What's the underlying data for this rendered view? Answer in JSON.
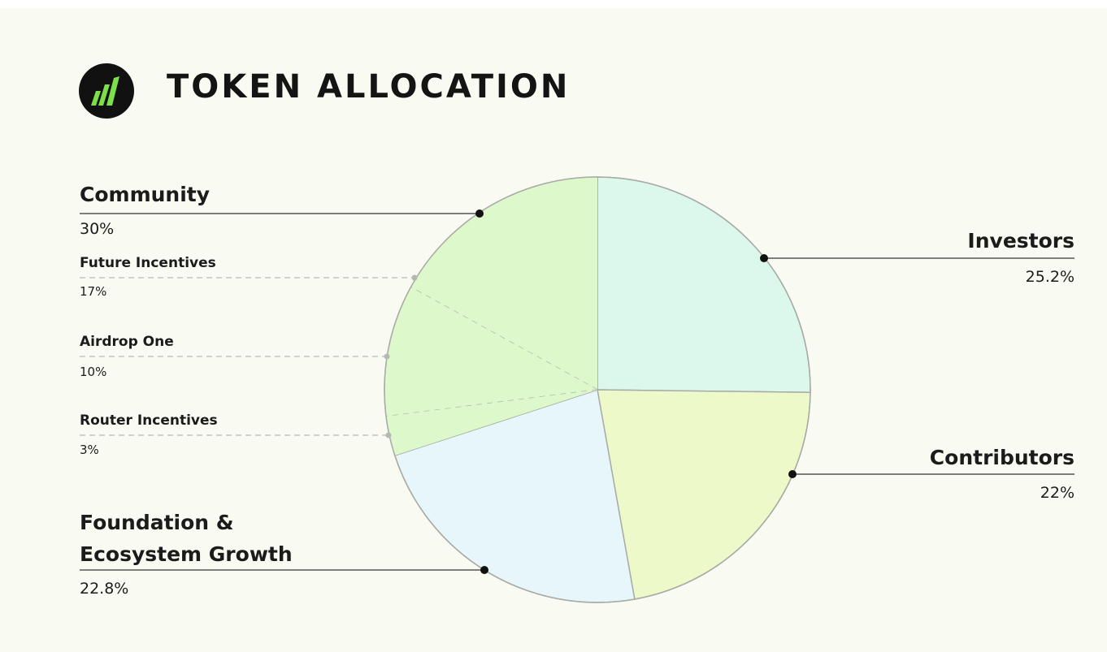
{
  "chart_data": {
    "type": "pie",
    "title": "TOKEN ALLOCATION",
    "categories": [
      "Investors",
      "Contributors",
      "Foundation & Ecosystem Growth",
      "Community"
    ],
    "values": [
      25.2,
      22,
      22.8,
      30
    ],
    "value_labels": [
      "25.2%",
      "22%",
      "22.8%",
      "30%"
    ],
    "colors": [
      "#dcf7ec",
      "#eef9c9",
      "#e7f6fb",
      "#ddf8cb"
    ],
    "subcategories": [
      "Future Incentives",
      "Airdrop One",
      "Router Incentives"
    ],
    "subvalues": [
      17,
      10,
      3
    ],
    "subvalue_labels": [
      "17%",
      "10%",
      "3%"
    ]
  }
}
